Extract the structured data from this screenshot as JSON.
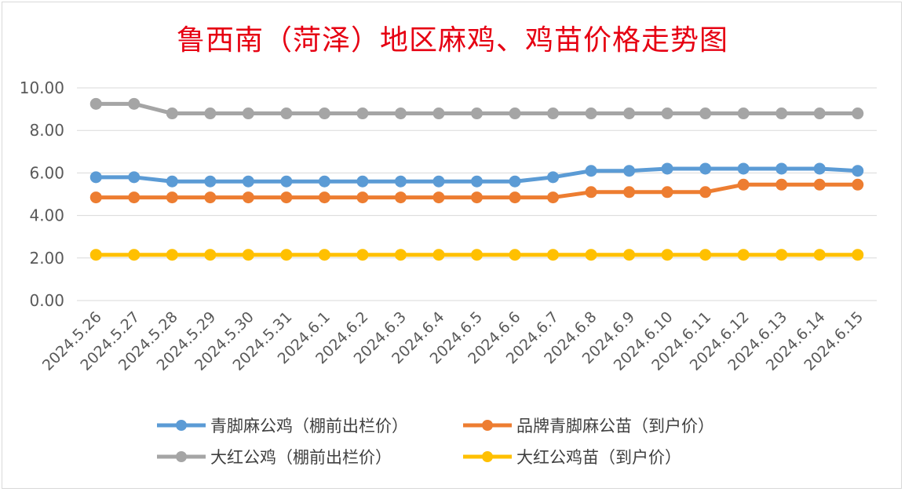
{
  "chart_data": {
    "type": "line",
    "title": "鲁西南（菏泽）地区麻鸡、鸡苗价格走势图",
    "categories": [
      "2024.5.26",
      "2024.5.27",
      "2024.5.28",
      "2024.5.29",
      "2024.5.30",
      "2024.5.31",
      "2024.6.1",
      "2024.6.2",
      "2024.6.3",
      "2024.6.4",
      "2024.6.5",
      "2024.6.6",
      "2024.6.7",
      "2024.6.8",
      "2024.6.9",
      "2024.6.10",
      "2024.6.11",
      "2024.6.12",
      "2024.6.13",
      "2024.6.14",
      "2024.6.15"
    ],
    "y_ticks": [
      "0.00",
      "2.00",
      "4.00",
      "6.00",
      "8.00",
      "10.00"
    ],
    "ylim": [
      0,
      10
    ],
    "grid": true,
    "legend_position": "bottom",
    "series": [
      {
        "name": "青脚麻公鸡（棚前出栏价）",
        "color": "#5b9bd5",
        "values": [
          5.8,
          5.8,
          5.6,
          5.6,
          5.6,
          5.6,
          5.6,
          5.6,
          5.6,
          5.6,
          5.6,
          5.6,
          5.8,
          6.1,
          6.1,
          6.2,
          6.2,
          6.2,
          6.2,
          6.2,
          6.1
        ]
      },
      {
        "name": "品牌青脚麻公苗（到户价）",
        "color": "#ed7d31",
        "values": [
          4.85,
          4.85,
          4.85,
          4.85,
          4.85,
          4.85,
          4.85,
          4.85,
          4.85,
          4.85,
          4.85,
          4.85,
          4.85,
          5.1,
          5.1,
          5.1,
          5.1,
          5.45,
          5.45,
          5.45,
          5.45
        ]
      },
      {
        "name": "大红公鸡（棚前出栏价）",
        "color": "#a5a5a5",
        "values": [
          9.25,
          9.25,
          8.8,
          8.8,
          8.8,
          8.8,
          8.8,
          8.8,
          8.8,
          8.8,
          8.8,
          8.8,
          8.8,
          8.8,
          8.8,
          8.8,
          8.8,
          8.8,
          8.8,
          8.8,
          8.8
        ]
      },
      {
        "name": "大红公鸡苗（到户价）",
        "color": "#ffc000",
        "values": [
          2.15,
          2.15,
          2.15,
          2.15,
          2.15,
          2.15,
          2.15,
          2.15,
          2.15,
          2.15,
          2.15,
          2.15,
          2.15,
          2.15,
          2.15,
          2.15,
          2.15,
          2.15,
          2.15,
          2.15,
          2.15
        ]
      }
    ]
  },
  "colors": {
    "title": "#e60012",
    "grid": "#d9d9d9",
    "axis_text": "#595959"
  }
}
